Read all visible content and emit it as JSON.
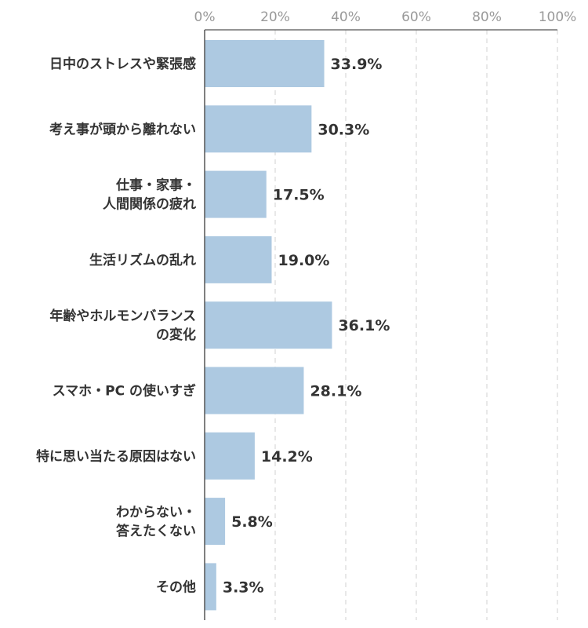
{
  "chart_data": {
    "type": "bar",
    "orientation": "horizontal",
    "categories": [
      [
        "日中のストレスや緊張感"
      ],
      [
        "考え事が頭から離れない"
      ],
      [
        "仕事・家事・",
        "人間関係の疲れ"
      ],
      [
        "生活リズムの乱れ"
      ],
      [
        "年齢やホルモンバランス",
        "の変化"
      ],
      [
        "スマホ・PC の使いすぎ"
      ],
      [
        "特に思い当たる原因はない"
      ],
      [
        "わからない・",
        "答えたくない"
      ],
      [
        "その他"
      ]
    ],
    "values": [
      33.9,
      30.3,
      17.5,
      19.0,
      36.1,
      28.1,
      14.2,
      5.8,
      3.3
    ],
    "value_labels": [
      "33.9%",
      "30.3%",
      "17.5%",
      "19.0%",
      "36.1%",
      "28.1%",
      "14.2%",
      "5.8%",
      "3.3%"
    ],
    "xlim": [
      0,
      100
    ],
    "x_ticks": [
      0,
      20,
      40,
      60,
      80,
      100
    ],
    "x_tick_labels": [
      "0%",
      "20%",
      "40%",
      "60%",
      "80%",
      "100%"
    ],
    "grid": true,
    "bar_color": "#adc9e1",
    "title": "",
    "xlabel": "",
    "ylabel": ""
  }
}
